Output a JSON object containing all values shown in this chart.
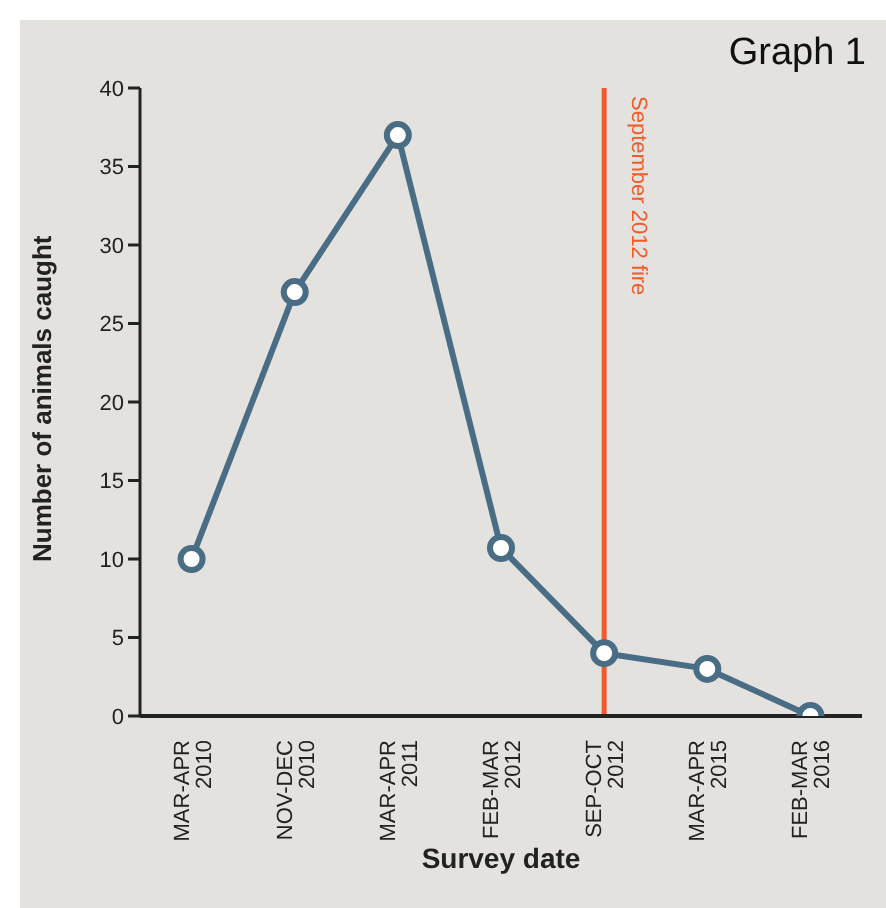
{
  "chart_data": {
    "type": "line",
    "title": "Graph 1",
    "xlabel": "Survey date",
    "ylabel": "Number of animals caught",
    "categories": [
      "MAR-APR 2010",
      "NOV-DEC 2010",
      "MAR-APR 2011",
      "FEB-MAR 2012",
      "SEP-OCT 2012",
      "MAR-APR 2015",
      "FEB-MAR 2016"
    ],
    "series": [
      {
        "color": "#4a6d86",
        "values": [
          10,
          27,
          37,
          10.7,
          4,
          3,
          0
        ]
      }
    ],
    "ylim": [
      0,
      40
    ],
    "yticks": [
      0,
      5,
      10,
      15,
      20,
      25,
      30,
      35,
      40
    ],
    "ref_lines": [
      {
        "axis": "x",
        "value": "SEP-OCT 2012",
        "label": "September 2012 fire",
        "color": "#f15a29"
      }
    ],
    "grid": false,
    "legend": false,
    "marker": "circle",
    "line_style": "solid"
  }
}
